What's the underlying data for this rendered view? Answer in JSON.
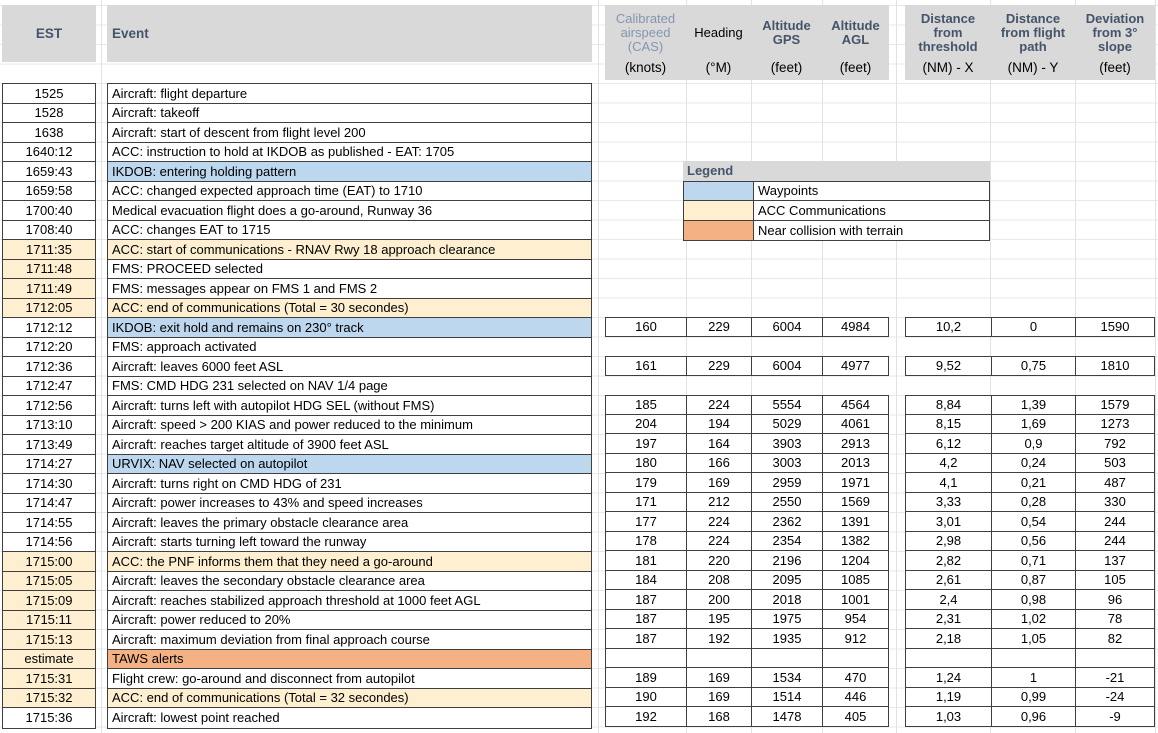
{
  "header": {
    "est": "EST",
    "event": "Event",
    "group1": {
      "cols": [
        {
          "name": "Calibrated airspeed (CAS)",
          "unit": "(knots)"
        },
        {
          "name": "Heading",
          "unit": "(°M)"
        },
        {
          "name": "Altitude GPS",
          "unit": "(feet)"
        },
        {
          "name": "Altitude AGL",
          "unit": "(feet)"
        }
      ]
    },
    "group2": {
      "cols": [
        {
          "name": "Distance from threshold",
          "unit": "(NM) - X"
        },
        {
          "name": "Distance from flight path",
          "unit": "(NM) - Y"
        },
        {
          "name": "Deviation from 3° slope",
          "unit": "(feet)"
        }
      ]
    }
  },
  "legend": {
    "title": "Legend",
    "items": [
      {
        "label": "Waypoints",
        "color": "#bdd7ee",
        "key": "waypoint"
      },
      {
        "label": "ACC Communications",
        "color": "#fdefcf",
        "key": "acc"
      },
      {
        "label": "Near collision with terrain",
        "color": "#f4b183",
        "key": "taws"
      }
    ]
  },
  "colors": {
    "header_fill": "#d9d9d9",
    "header_text": "#44546a",
    "muted_header_text": "#8496b0",
    "waypoint_fill": "#bdd7ee",
    "acc_fill": "#fdefcf",
    "taws_fill": "#f4b183",
    "cell_border": "#3f3f3f"
  },
  "rows": [
    {
      "est": "1525",
      "est_fill": null,
      "event": "Aircraft: flight departure",
      "event_fill": null,
      "data": null
    },
    {
      "est": "1528",
      "est_fill": null,
      "event": "Aircraft: takeoff",
      "event_fill": null,
      "data": null
    },
    {
      "est": "1638",
      "est_fill": null,
      "event": "Aircraft: start of descent from flight level 200",
      "event_fill": null,
      "data": null
    },
    {
      "est": "1640:12",
      "est_fill": null,
      "event": "ACC: instruction to hold at IKDOB as published - EAT: 1705",
      "event_fill": null,
      "data": null
    },
    {
      "est": "1659:43",
      "est_fill": null,
      "event": "IKDOB: entering holding pattern",
      "event_fill": "waypoint",
      "data": null
    },
    {
      "est": "1659:58",
      "est_fill": null,
      "event": "ACC: changed expected approach time (EAT) to 1710",
      "event_fill": null,
      "data": null
    },
    {
      "est": "1700:40",
      "est_fill": null,
      "event": "Medical evacuation flight does a go-around, Runway 36",
      "event_fill": null,
      "data": null
    },
    {
      "est": "1708:40",
      "est_fill": null,
      "event": "ACC: changes EAT to 1715",
      "event_fill": null,
      "data": null
    },
    {
      "est": "1711:35",
      "est_fill": "acc",
      "event": "ACC: start of communications -  RNAV Rwy 18 approach clearance",
      "event_fill": "acc",
      "data": null
    },
    {
      "est": "1711:48",
      "est_fill": "acc",
      "event": "FMS: PROCEED selected",
      "event_fill": null,
      "data": null
    },
    {
      "est": "1711:49",
      "est_fill": "acc",
      "event": "FMS: messages appear on FMS 1 and FMS 2",
      "event_fill": null,
      "data": null
    },
    {
      "est": "1712:05",
      "est_fill": "acc",
      "event": "ACC: end of communications (Total = 30 secondes)",
      "event_fill": "acc",
      "data": null
    },
    {
      "est": "1712:12",
      "est_fill": null,
      "event": "IKDOB: exit hold and remains on 230° track",
      "event_fill": "waypoint",
      "data": {
        "cas": "160",
        "hdg": "229",
        "gps": "6004",
        "agl": "4984",
        "x": "10,2",
        "y": "0",
        "dev": "1590"
      }
    },
    {
      "est": "1712:20",
      "est_fill": null,
      "event": "FMS: approach activated",
      "event_fill": null,
      "data": null
    },
    {
      "est": "1712:36",
      "est_fill": null,
      "event": "Aircraft: leaves 6000 feet ASL",
      "event_fill": null,
      "data": {
        "cas": "161",
        "hdg": "229",
        "gps": "6004",
        "agl": "4977",
        "x": "9,52",
        "y": "0,75",
        "dev": "1810"
      }
    },
    {
      "est": "1712:47",
      "est_fill": null,
      "event": "FMS: CMD HDG 231 selected on NAV 1/4 page",
      "event_fill": null,
      "data": null
    },
    {
      "est": "1712:56",
      "est_fill": null,
      "event": "Aircraft: turns left with autopilot HDG SEL (without FMS)",
      "event_fill": null,
      "data": {
        "cas": "185",
        "hdg": "224",
        "gps": "5554",
        "agl": "4564",
        "x": "8,84",
        "y": "1,39",
        "dev": "1579"
      }
    },
    {
      "est": "1713:10",
      "est_fill": null,
      "event": "Aircraft: speed > 200 KIAS and power reduced to the minimum",
      "event_fill": null,
      "data": {
        "cas": "204",
        "hdg": "194",
        "gps": "5029",
        "agl": "4061",
        "x": "8,15",
        "y": "1,69",
        "dev": "1273"
      }
    },
    {
      "est": "1713:49",
      "est_fill": null,
      "event": "Aircraft: reaches target altitude of 3900 feet ASL",
      "event_fill": null,
      "data": {
        "cas": "197",
        "hdg": "164",
        "gps": "3903",
        "agl": "2913",
        "x": "6,12",
        "y": "0,9",
        "dev": "792"
      }
    },
    {
      "est": "1714:27",
      "est_fill": null,
      "event": "URVIX: NAV selected on autopilot",
      "event_fill": "waypoint",
      "data": {
        "cas": "180",
        "hdg": "166",
        "gps": "3003",
        "agl": "2013",
        "x": "4,2",
        "y": "0,24",
        "dev": "503"
      }
    },
    {
      "est": "1714:30",
      "est_fill": null,
      "event": "Aircraft: turns right on CMD HDG of 231",
      "event_fill": null,
      "data": {
        "cas": "179",
        "hdg": "169",
        "gps": "2959",
        "agl": "1971",
        "x": "4,1",
        "y": "0,21",
        "dev": "487"
      }
    },
    {
      "est": "1714:47",
      "est_fill": null,
      "event": "Aircraft: power increases to 43% and speed increases",
      "event_fill": null,
      "data": {
        "cas": "171",
        "hdg": "212",
        "gps": "2550",
        "agl": "1569",
        "x": "3,33",
        "y": "0,28",
        "dev": "330"
      }
    },
    {
      "est": "1714:55",
      "est_fill": null,
      "event": "Aircraft: leaves the primary obstacle clearance area",
      "event_fill": null,
      "data": {
        "cas": "177",
        "hdg": "224",
        "gps": "2362",
        "agl": "1391",
        "x": "3,01",
        "y": "0,54",
        "dev": "244"
      }
    },
    {
      "est": "1714:56",
      "est_fill": null,
      "event": "Aircraft: starts turning left toward the runway",
      "event_fill": null,
      "data": {
        "cas": "178",
        "hdg": "224",
        "gps": "2354",
        "agl": "1382",
        "x": "2,98",
        "y": "0,56",
        "dev": "244"
      }
    },
    {
      "est": "1715:00",
      "est_fill": "acc",
      "event": "ACC: the PNF informs them that they need a go-around",
      "event_fill": "acc",
      "data": {
        "cas": "181",
        "hdg": "220",
        "gps": "2196",
        "agl": "1204",
        "x": "2,82",
        "y": "0,71",
        "dev": "137"
      }
    },
    {
      "est": "1715:05",
      "est_fill": "acc",
      "event": "Aircraft: leaves the secondary obstacle clearance area",
      "event_fill": null,
      "data": {
        "cas": "184",
        "hdg": "208",
        "gps": "2095",
        "agl": "1085",
        "x": "2,61",
        "y": "0,87",
        "dev": "105"
      }
    },
    {
      "est": "1715:09",
      "est_fill": "acc",
      "event": "Aircraft: reaches stabilized approach threshold at 1000 feet AGL",
      "event_fill": null,
      "data": {
        "cas": "187",
        "hdg": "200",
        "gps": "2018",
        "agl": "1001",
        "x": "2,4",
        "y": "0,98",
        "dev": "96"
      }
    },
    {
      "est": "1715:11",
      "est_fill": "acc",
      "event": "Aircraft: power reduced to 20%",
      "event_fill": null,
      "data": {
        "cas": "187",
        "hdg": "195",
        "gps": "1975",
        "agl": "954",
        "x": "2,31",
        "y": "1,02",
        "dev": "78"
      }
    },
    {
      "est": "1715:13",
      "est_fill": "acc",
      "event": "Aircraft: maximum deviation from final approach course",
      "event_fill": null,
      "data": {
        "cas": "187",
        "hdg": "192",
        "gps": "1935",
        "agl": "912",
        "x": "2,18",
        "y": "1,05",
        "dev": "82"
      }
    },
    {
      "est": "estimate",
      "est_fill": "acc",
      "event": "TAWS alerts",
      "event_fill": "taws",
      "data": "empty"
    },
    {
      "est": "1715:31",
      "est_fill": "acc",
      "event": "Flight crew: go-around and disconnect from autopilot",
      "event_fill": null,
      "data": {
        "cas": "189",
        "hdg": "169",
        "gps": "1534",
        "agl": "470",
        "x": "1,24",
        "y": "1",
        "dev": "-21"
      }
    },
    {
      "est": "1715:32",
      "est_fill": "acc",
      "event": "ACC: end of communications (Total = 32 secondes)",
      "event_fill": "acc",
      "data": {
        "cas": "190",
        "hdg": "169",
        "gps": "1514",
        "agl": "446",
        "x": "1,19",
        "y": "0,99",
        "dev": "-24"
      }
    },
    {
      "est": "1715:36",
      "est_fill": null,
      "event": "Aircraft: lowest point reached",
      "event_fill": null,
      "data": {
        "cas": "192",
        "hdg": "168",
        "gps": "1478",
        "agl": "405",
        "x": "1,03",
        "y": "0,96",
        "dev": "-9"
      }
    }
  ]
}
